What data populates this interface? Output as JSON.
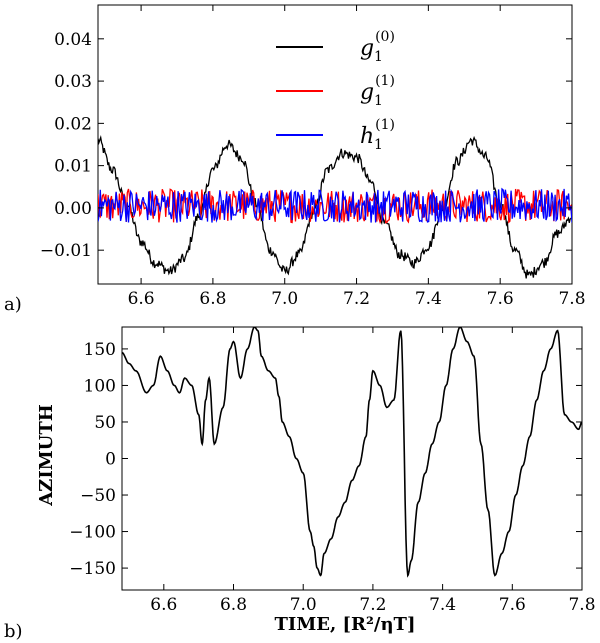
{
  "chart_data": [
    {
      "type": "line",
      "panel_label": "a)",
      "xlim": [
        6.48,
        7.8
      ],
      "ylim": [
        -0.018,
        0.048
      ],
      "x_ticks": [
        "6.6",
        "6.8",
        "7.0",
        "7.2",
        "7.4",
        "7.6",
        "7.8"
      ],
      "x_tick_values": [
        6.6,
        6.8,
        7.0,
        7.2,
        7.4,
        7.6,
        7.8
      ],
      "y_ticks": [
        "−0.01",
        "0.00",
        "0.01",
        "0.02",
        "0.03",
        "0.04"
      ],
      "y_tick_values": [
        -0.01,
        0.0,
        0.01,
        0.02,
        0.03,
        0.04
      ],
      "grid": false,
      "legend_position": "upper-center",
      "series": [
        {
          "name": "g1(0)",
          "legend_base": "g",
          "legend_sub": "1",
          "legend_sup": "(0)",
          "color": "#000000",
          "x": [
            6.48,
            6.52,
            6.56,
            6.6,
            6.64,
            6.68,
            6.72,
            6.76,
            6.8,
            6.84,
            6.88,
            6.92,
            6.96,
            7.0,
            7.04,
            7.08,
            7.12,
            7.16,
            7.2,
            7.24,
            7.28,
            7.32,
            7.36,
            7.4,
            7.44,
            7.48,
            7.52,
            7.56,
            7.6,
            7.64,
            7.68,
            7.72,
            7.76,
            7.8
          ],
          "y": [
            0.016,
            0.009,
            0.001,
            -0.008,
            -0.013,
            -0.015,
            -0.012,
            -0.002,
            0.009,
            0.015,
            0.012,
            0.001,
            -0.01,
            -0.015,
            -0.011,
            -0.001,
            0.009,
            0.013,
            0.012,
            0.006,
            -0.004,
            -0.011,
            -0.013,
            -0.009,
            0.0,
            0.011,
            0.016,
            0.012,
            0.001,
            -0.01,
            -0.016,
            -0.013,
            -0.006,
            -0.002
          ]
        },
        {
          "name": "g1(1)",
          "legend_base": "g",
          "legend_sub": "1",
          "legend_sup": "(1)",
          "color": "#ff0000",
          "noise_amplitude": 0.004
        },
        {
          "name": "h1(1)",
          "legend_base": "h",
          "legend_sub": "1",
          "legend_sup": "(1)",
          "color": "#0000ff",
          "noise_amplitude": 0.004
        }
      ]
    },
    {
      "type": "line",
      "panel_label": "b)",
      "ylabel": "AZIMUTH",
      "xlabel": "TIME, [R²/ηT]",
      "xlim": [
        6.48,
        7.8
      ],
      "ylim": [
        -180,
        180
      ],
      "x_ticks": [
        "6.6",
        "6.8",
        "7.0",
        "7.2",
        "7.4",
        "7.6",
        "7.8"
      ],
      "x_tick_values": [
        6.6,
        6.8,
        7.0,
        7.2,
        7.4,
        7.6,
        7.8
      ],
      "y_ticks": [
        "−150",
        "−100",
        "−50",
        "0",
        "50",
        "100",
        "150"
      ],
      "y_tick_values": [
        -150,
        -100,
        -50,
        0,
        50,
        100,
        150
      ],
      "grid": false,
      "series": [
        {
          "name": "",
          "color": "#000000",
          "x": [
            6.48,
            6.5,
            6.52,
            6.55,
            6.57,
            6.59,
            6.61,
            6.63,
            6.645,
            6.66,
            6.68,
            6.7,
            6.71,
            6.72,
            6.73,
            6.745,
            6.77,
            6.79,
            6.8,
            6.82,
            6.84,
            6.86,
            6.87,
            6.88,
            6.9,
            6.92,
            6.93,
            6.94,
            6.96,
            6.98,
            7.0,
            7.02,
            7.03,
            7.04,
            7.05,
            7.06,
            7.08,
            7.1,
            7.12,
            7.14,
            7.16,
            7.18,
            7.19,
            7.2,
            7.22,
            7.24,
            7.26,
            7.28,
            7.3,
            7.31,
            7.33,
            7.35,
            7.37,
            7.39,
            7.41,
            7.43,
            7.45,
            7.47,
            7.49,
            7.51,
            7.53,
            7.55,
            7.57,
            7.59,
            7.61,
            7.63,
            7.65,
            7.67,
            7.69,
            7.71,
            7.73,
            7.75,
            7.77,
            7.79,
            7.8
          ],
          "y": [
            145,
            130,
            120,
            90,
            100,
            140,
            120,
            100,
            90,
            110,
            100,
            60,
            20,
            80,
            110,
            20,
            70,
            150,
            160,
            110,
            150,
            180,
            175,
            140,
            120,
            110,
            85,
            50,
            30,
            0,
            -20,
            -100,
            -120,
            -150,
            -160,
            -130,
            -110,
            -80,
            -60,
            -30,
            -10,
            30,
            80,
            120,
            100,
            70,
            80,
            175,
            -160,
            -140,
            -60,
            -20,
            20,
            50,
            100,
            150,
            180,
            160,
            140,
            20,
            -70,
            -160,
            -130,
            -100,
            -50,
            -10,
            30,
            80,
            120,
            150,
            175,
            60,
            50,
            40,
            50
          ]
        }
      ]
    }
  ]
}
